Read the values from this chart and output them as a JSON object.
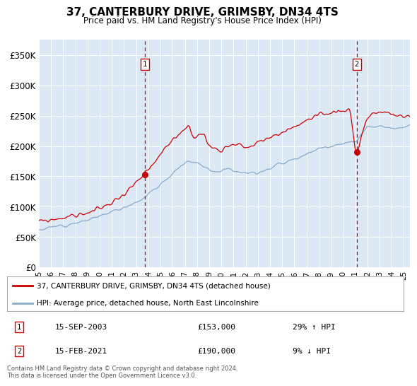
{
  "title": "37, CANTERBURY DRIVE, GRIMSBY, DN34 4TS",
  "subtitle": "Price paid vs. HM Land Registry's House Price Index (HPI)",
  "background_color": "#dce9f5",
  "ylim": [
    0,
    375000
  ],
  "yticks": [
    0,
    50000,
    100000,
    150000,
    200000,
    250000,
    300000,
    350000
  ],
  "ytick_labels": [
    "£0",
    "£50K",
    "£100K",
    "£150K",
    "£200K",
    "£250K",
    "£300K",
    "£350K"
  ],
  "sale1_date": 2003.71,
  "sale1_price": 153000,
  "sale1_text": "15-SEP-2003",
  "sale1_pct": "29% ↑ HPI",
  "sale2_date": 2021.12,
  "sale2_price": 190000,
  "sale2_text": "15-FEB-2021",
  "sale2_pct": "9% ↓ HPI",
  "red_line_color": "#cc0000",
  "blue_line_color": "#88aacc",
  "vline_color": "#cc0000",
  "marker_box_color": "#cc0000",
  "legend_label_red": "37, CANTERBURY DRIVE, GRIMSBY, DN34 4TS (detached house)",
  "legend_label_blue": "HPI: Average price, detached house, North East Lincolnshire",
  "footer": "Contains HM Land Registry data © Crown copyright and database right 2024.\nThis data is licensed under the Open Government Licence v3.0.",
  "xlim_start": 1995.0,
  "xlim_end": 2025.5,
  "xticks": [
    1995,
    1996,
    1997,
    1998,
    1999,
    2000,
    2001,
    2002,
    2003,
    2004,
    2005,
    2006,
    2007,
    2008,
    2009,
    2010,
    2011,
    2012,
    2013,
    2014,
    2015,
    2016,
    2017,
    2018,
    2019,
    2020,
    2021,
    2022,
    2023,
    2024,
    2025
  ]
}
